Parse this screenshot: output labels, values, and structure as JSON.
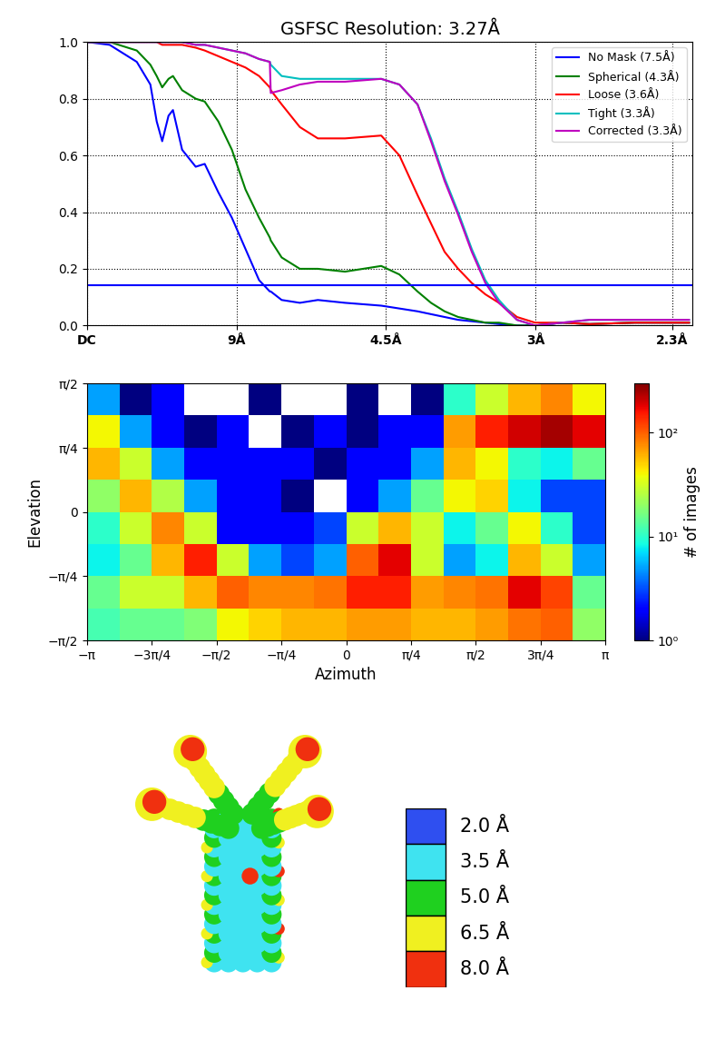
{
  "chart_data": [
    {
      "type": "line",
      "title": "GSFSC Resolution: 3.27Å",
      "x": [
        0.0,
        0.0168,
        0.037,
        0.0471,
        0.0518,
        0.0559,
        0.0606,
        0.0639,
        0.0707,
        0.0808,
        0.0875,
        0.0976,
        0.1077,
        0.1178,
        0.1279,
        0.1359,
        0.1366,
        0.1447,
        0.1582,
        0.1716,
        0.1918,
        0.2187,
        0.2322,
        0.2457,
        0.2557,
        0.2658,
        0.2759,
        0.286,
        0.2961,
        0.3062,
        0.3196,
        0.3331,
        0.3533,
        0.3735,
        0.4071,
        0.4475
      ],
      "series": [
        {
          "name": "No Mask (7.5Å)",
          "color": "#0000ff",
          "values": [
            1.0,
            0.99,
            0.93,
            0.85,
            0.72,
            0.65,
            0.74,
            0.76,
            0.62,
            0.56,
            0.57,
            0.47,
            0.38,
            0.27,
            0.16,
            0.12,
            0.12,
            0.09,
            0.08,
            0.09,
            0.08,
            0.07,
            0.06,
            0.05,
            0.04,
            0.03,
            0.02,
            0.015,
            0.01,
            0.005,
            0.0,
            0.0,
            0.01,
            0.005,
            0.01,
            0.01
          ]
        },
        {
          "name": "Spherical (4.3Å)",
          "color": "#008000",
          "values": [
            1.0,
            1.0,
            0.97,
            0.92,
            0.88,
            0.84,
            0.87,
            0.88,
            0.83,
            0.8,
            0.79,
            0.72,
            0.62,
            0.48,
            0.38,
            0.31,
            0.3,
            0.24,
            0.2,
            0.2,
            0.19,
            0.21,
            0.18,
            0.12,
            0.08,
            0.05,
            0.03,
            0.02,
            0.01,
            0.01,
            0.0,
            0.0,
            0.01,
            0.005,
            0.01,
            0.01
          ]
        },
        {
          "name": "Loose (3.6Å)",
          "color": "#ff0000",
          "values": [
            1.0,
            1.0,
            1.0,
            1.0,
            1.0,
            0.99,
            0.99,
            0.99,
            0.99,
            0.98,
            0.97,
            0.95,
            0.93,
            0.91,
            0.88,
            0.84,
            0.83,
            0.78,
            0.7,
            0.66,
            0.66,
            0.67,
            0.6,
            0.46,
            0.36,
            0.26,
            0.2,
            0.15,
            0.11,
            0.08,
            0.03,
            0.01,
            0.01,
            0.005,
            0.01,
            0.01
          ]
        },
        {
          "name": "Tight (3.3Å)",
          "color": "#00bfbf",
          "values": [
            1.0,
            1.0,
            1.0,
            1.0,
            1.0,
            1.0,
            1.0,
            1.0,
            1.0,
            0.99,
            0.99,
            0.98,
            0.97,
            0.96,
            0.94,
            0.93,
            0.92,
            0.88,
            0.87,
            0.87,
            0.87,
            0.87,
            0.85,
            0.78,
            0.66,
            0.52,
            0.4,
            0.27,
            0.16,
            0.09,
            0.02,
            0.0,
            0.01,
            0.02,
            0.02,
            0.02
          ]
        },
        {
          "name": "Corrected (3.3Å)",
          "color": "#bf00bf",
          "values": [
            1.0,
            1.0,
            1.0,
            1.0,
            1.0,
            1.0,
            1.0,
            1.0,
            1.0,
            0.99,
            0.99,
            0.98,
            0.97,
            0.96,
            0.94,
            0.93,
            0.82,
            0.83,
            0.85,
            0.86,
            0.86,
            0.87,
            0.85,
            0.78,
            0.65,
            0.51,
            0.39,
            0.26,
            0.15,
            0.08,
            0.02,
            0.0,
            0.01,
            0.02,
            0.02,
            0.02
          ]
        }
      ],
      "threshold": 0.143,
      "xlim": [
        0,
        0.45
      ],
      "xticks": [
        {
          "value": 0,
          "label": "DC"
        },
        {
          "value": 0.1111,
          "label": "9Å"
        },
        {
          "value": 0.2222,
          "label": "4.5Å"
        },
        {
          "value": 0.3333,
          "label": "3Å"
        },
        {
          "value": 0.4348,
          "label": "2.3Å"
        }
      ],
      "ylim": [
        0.0,
        1.0
      ],
      "yticks": [
        0.0,
        0.2,
        0.4,
        0.6,
        0.8,
        1.0
      ],
      "grid": true,
      "legend": "upper right"
    },
    {
      "type": "heatmap",
      "x_label": "Azimuth",
      "y_label": "Elevation",
      "x_edges": [
        -3.1416,
        -2.7489,
        -2.3562,
        -1.9635,
        -1.5708,
        -1.1781,
        -0.7854,
        -0.3927,
        0,
        0.3927,
        0.7854,
        1.1781,
        1.5708,
        1.9635,
        2.3562,
        2.7489,
        3.1416
      ],
      "y_edges": [
        -1.5708,
        -1.1781,
        -0.7854,
        -0.3927,
        0,
        0.3927,
        0.7854,
        1.1781,
        1.5708
      ],
      "cells": [
        [
          12,
          15,
          15,
          18,
          40,
          50,
          60,
          60,
          70,
          70,
          60,
          60,
          70,
          90,
          100,
          20
        ],
        [
          15,
          30,
          30,
          60,
          100,
          80,
          80,
          90,
          150,
          150,
          70,
          80,
          90,
          180,
          120,
          15
        ],
        [
          8,
          15,
          60,
          150,
          30,
          5,
          3,
          5,
          100,
          180,
          30,
          5,
          8,
          60,
          30,
          5
        ],
        [
          10,
          30,
          80,
          30,
          2,
          2,
          2,
          3,
          30,
          60,
          30,
          8,
          15,
          40,
          10,
          3
        ],
        [
          20,
          60,
          25,
          5,
          2,
          2,
          1,
          null,
          2,
          5,
          15,
          40,
          50,
          8,
          3,
          3
        ],
        [
          60,
          30,
          5,
          2,
          2,
          2,
          2,
          1,
          2,
          2,
          5,
          60,
          40,
          10,
          8,
          15
        ],
        [
          40,
          5,
          2,
          1,
          2,
          null,
          1,
          2,
          1,
          2,
          2,
          70,
          150,
          200,
          250,
          180
        ],
        [
          5,
          1,
          2,
          null,
          null,
          1,
          null,
          null,
          1,
          null,
          1,
          10,
          30,
          60,
          80,
          40
        ]
      ],
      "xlim": [
        -3.1416,
        3.1416
      ],
      "xticks": [
        {
          "value": -3.1416,
          "label": "−π"
        },
        {
          "value": -2.3562,
          "label": "−3π/4"
        },
        {
          "value": -1.5708,
          "label": "−π/2"
        },
        {
          "value": -0.7854,
          "label": "−π/4"
        },
        0,
        {
          "value": 0.7854,
          "label": "π/4"
        },
        {
          "value": 1.5708,
          "label": "π/2"
        },
        {
          "value": 2.3562,
          "label": "3π/4"
        },
        {
          "value": 3.1416,
          "label": "π"
        }
      ],
      "ylim": [
        -1.5708,
        1.5708
      ],
      "yticks": [
        {
          "value": -1.5708,
          "label": "−π/2"
        },
        {
          "value": -0.7854,
          "label": "−π/4"
        },
        0,
        {
          "value": 0.7854,
          "label": "π/4"
        },
        {
          "value": 1.5708,
          "label": "π/2"
        }
      ],
      "grid": false,
      "colorbar": {
        "label": "# of images",
        "range": [
          1,
          300
        ],
        "log": true,
        "ticks": [
          {
            "value": 1,
            "label": "10⁰"
          },
          {
            "value": 10,
            "label": "10¹"
          },
          {
            "value": 100,
            "label": "10²"
          }
        ]
      }
    }
  ],
  "local_resolution": {
    "entries": [
      {
        "value": 2.0,
        "label": "2.0 Å",
        "color": "#2f4ff0"
      },
      {
        "value": 3.5,
        "label": "3.5 Å",
        "color": "#3fe3f0"
      },
      {
        "value": 5.0,
        "label": "5.0 Å",
        "color": "#1fd01f"
      },
      {
        "value": 6.5,
        "label": "6.5 Å",
        "color": "#f0f020"
      },
      {
        "value": 8.0,
        "label": "8.0 Å",
        "color": "#f0300f"
      }
    ]
  }
}
